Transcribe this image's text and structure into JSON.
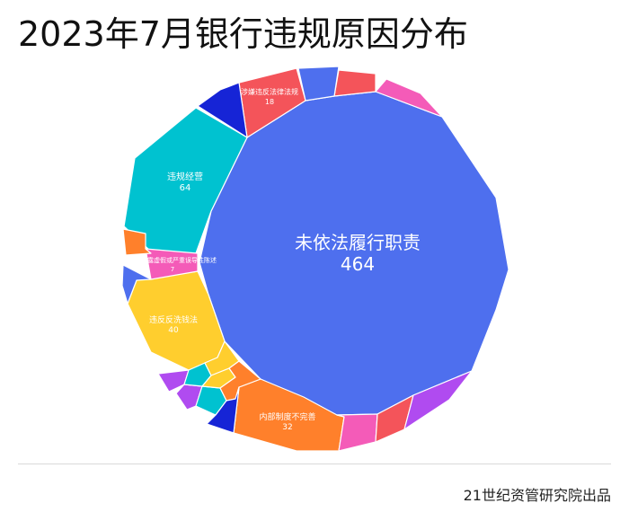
{
  "page_title": "2023年7月银行违规原因分布",
  "source_label": "21世纪资管研究院出品",
  "chart_data": {
    "type": "voronoi-treemap",
    "title": "2023年7月银行违规原因分布",
    "series": [
      {
        "label": "未依法履行职责",
        "value": 464,
        "color": "#4E6FEE",
        "labeled": true
      },
      {
        "label": "违规经营",
        "value": 64,
        "color": "#00C2D0",
        "labeled": true
      },
      {
        "label": "违反反洗钱法",
        "value": 40,
        "color": "#FFCE2E",
        "labeled": true
      },
      {
        "label": "内部制度不完善",
        "value": 32,
        "color": "#FF802B",
        "labeled": true
      },
      {
        "label": "涉嫌违反法律法规",
        "value": 18,
        "color": "#F4545A",
        "labeled": true
      },
      {
        "label": "信息披露虚假或严重误导性陈述",
        "value": 7,
        "color": "#F45BB8",
        "labeled": true
      }
    ],
    "unlabeled_cells": [
      {
        "color": "#F45BB8"
      },
      {
        "color": "#F4545A"
      },
      {
        "color": "#4E6FEE"
      },
      {
        "color": "#1624D6"
      },
      {
        "color": "#FF802B"
      },
      {
        "color": "#4E6FEE"
      },
      {
        "color": "#B04BF0"
      },
      {
        "color": "#B04BF0"
      },
      {
        "color": "#00C2D0"
      },
      {
        "color": "#00C2D0"
      },
      {
        "color": "#FFCE2E"
      },
      {
        "color": "#FFCE2E"
      },
      {
        "color": "#FF802B"
      },
      {
        "color": "#1624D6"
      },
      {
        "color": "#F45BB8"
      },
      {
        "color": "#F4545A"
      },
      {
        "color": "#B04BF0"
      }
    ]
  }
}
